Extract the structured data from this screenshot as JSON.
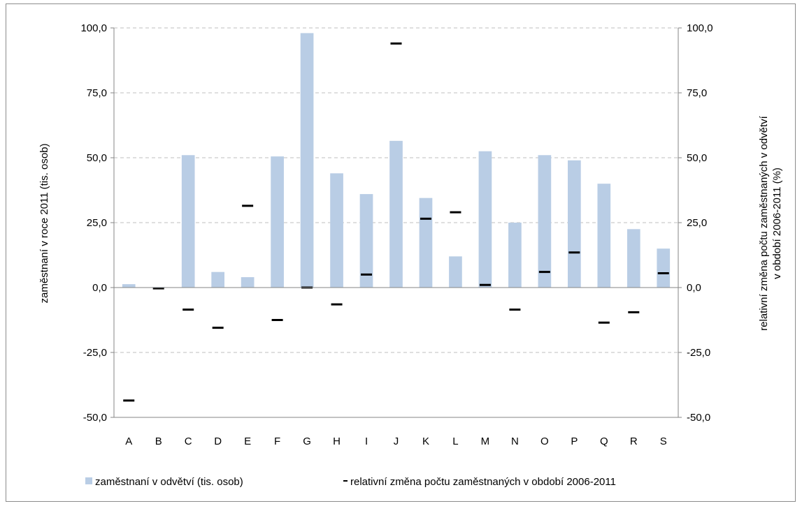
{
  "chart_data": {
    "type": "bar",
    "categories": [
      "A",
      "B",
      "C",
      "D",
      "E",
      "F",
      "G",
      "H",
      "I",
      "J",
      "K",
      "L",
      "M",
      "N",
      "O",
      "P",
      "Q",
      "R",
      "S"
    ],
    "series": [
      {
        "name": "zaměstnaní v odvětví (tis. osob)",
        "type": "bar",
        "axis": "left",
        "color": "#b9cde5",
        "values": [
          1.3,
          0.2,
          51.0,
          6.0,
          4.0,
          50.5,
          98.0,
          44.0,
          36.0,
          56.5,
          34.5,
          12.0,
          52.5,
          25.0,
          51.0,
          49.0,
          40.0,
          22.5,
          15.0
        ]
      },
      {
        "name": "relativní změna počtu zaměstnaných v období 2006-2011",
        "type": "marker",
        "axis": "right",
        "color": "#000000",
        "values": [
          -43.5,
          -0.3,
          -8.5,
          -15.5,
          31.5,
          -12.5,
          0.0,
          -6.5,
          5.0,
          94.0,
          26.5,
          29.0,
          1.0,
          -8.5,
          6.0,
          13.5,
          -13.5,
          -9.5,
          5.5
        ]
      }
    ],
    "y_left": {
      "label": "zaměstnaní v roce 2011 (tis. osob)",
      "ylim": [
        -50,
        100
      ],
      "ticks": [
        "100,0",
        "75,0",
        "50,0",
        "25,0",
        "0,0",
        "-25,0",
        "-50,0"
      ]
    },
    "y_right": {
      "label_line1": "relativní změna počtu zaměstnaných v odvětví",
      "label_line2": "v období 2006-2011 (%)",
      "ylim": [
        -50,
        100
      ],
      "ticks": [
        "100,0",
        "75,0",
        "50,0",
        "25,0",
        "0,0",
        "-25,0",
        "-50,0"
      ]
    },
    "grid": "horizontal dashed",
    "legend_position": "bottom"
  }
}
